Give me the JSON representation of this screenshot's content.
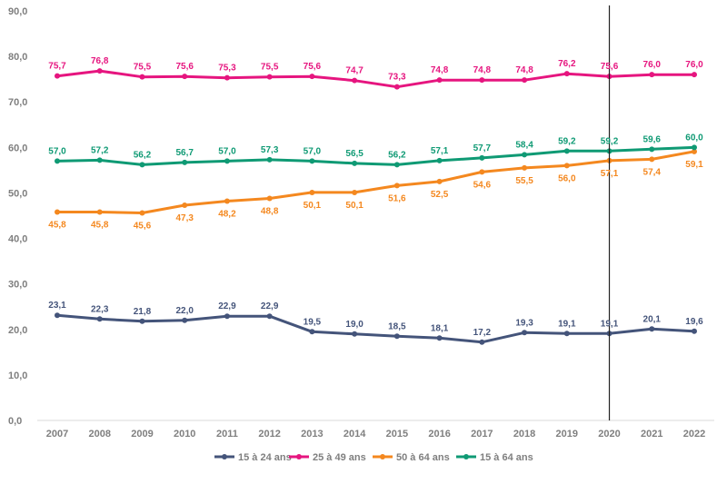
{
  "chart_data": {
    "type": "line",
    "x": [
      "2007",
      "2008",
      "2009",
      "2010",
      "2011",
      "2012",
      "2013",
      "2014",
      "2015",
      "2016",
      "2017",
      "2018",
      "2019",
      "2020",
      "2021",
      "2022"
    ],
    "y_ticks": [
      "0,0",
      "10,0",
      "20,0",
      "30,0",
      "40,0",
      "50,0",
      "60,0",
      "70,0",
      "80,0",
      "90,0"
    ],
    "ylim": [
      0,
      90
    ],
    "grid": false,
    "legend_position": "bottom",
    "vertical_marker_x": "2020",
    "series": [
      {
        "name": "15 à 24 ans",
        "color": "#44547a",
        "values": [
          23.1,
          22.3,
          21.8,
          22.0,
          22.9,
          22.9,
          19.5,
          19.0,
          18.5,
          18.1,
          17.2,
          19.3,
          19.1,
          19.1,
          20.1,
          19.6
        ],
        "labels": [
          "23,1",
          "22,3",
          "21,8",
          "22,0",
          "22,9",
          "22,9",
          "19,5",
          "19,0",
          "18,5",
          "18,1",
          "17,2",
          "19,3",
          "19,1",
          "19,1",
          "20,1",
          "19,6"
        ],
        "label_pos": "above"
      },
      {
        "name": "25 à 49 ans",
        "color": "#e6157f",
        "values": [
          75.7,
          76.8,
          75.5,
          75.6,
          75.3,
          75.5,
          75.6,
          74.7,
          73.3,
          74.8,
          74.8,
          74.8,
          76.2,
          75.6,
          76.0,
          76.0
        ],
        "labels": [
          "75,7",
          "76,8",
          "75,5",
          "75,6",
          "75,3",
          "75,5",
          "75,6",
          "74,7",
          "73,3",
          "74,8",
          "74,8",
          "74,8",
          "76,2",
          "75,6",
          "76,0",
          "76,0"
        ],
        "label_pos": "above"
      },
      {
        "name": "50 à 64 ans",
        "color": "#f4881f",
        "values": [
          45.8,
          45.8,
          45.6,
          47.3,
          48.2,
          48.8,
          50.1,
          50.1,
          51.6,
          52.5,
          54.6,
          55.5,
          56.0,
          57.1,
          57.4,
          59.1
        ],
        "labels": [
          "45,8",
          "45,8",
          "45,6",
          "47,3",
          "48,2",
          "48,8",
          "50,1",
          "50,1",
          "51,6",
          "52,5",
          "54,6",
          "55,5",
          "56,0",
          "57,1",
          "57,4",
          "59,1"
        ],
        "label_pos": "below"
      },
      {
        "name": "15 à 64 ans",
        "color": "#0f9a74",
        "values": [
          57.0,
          57.2,
          56.2,
          56.7,
          57.0,
          57.3,
          57.0,
          56.5,
          56.2,
          57.1,
          57.7,
          58.4,
          59.2,
          59.2,
          59.6,
          60.0
        ],
        "labels": [
          "57,0",
          "57,2",
          "56,2",
          "56,7",
          "57,0",
          "57,3",
          "57,0",
          "56,5",
          "56,2",
          "57,1",
          "57,7",
          "58,4",
          "59,2",
          "59,2",
          "59,6",
          "60,0"
        ],
        "label_pos": "above"
      }
    ]
  }
}
